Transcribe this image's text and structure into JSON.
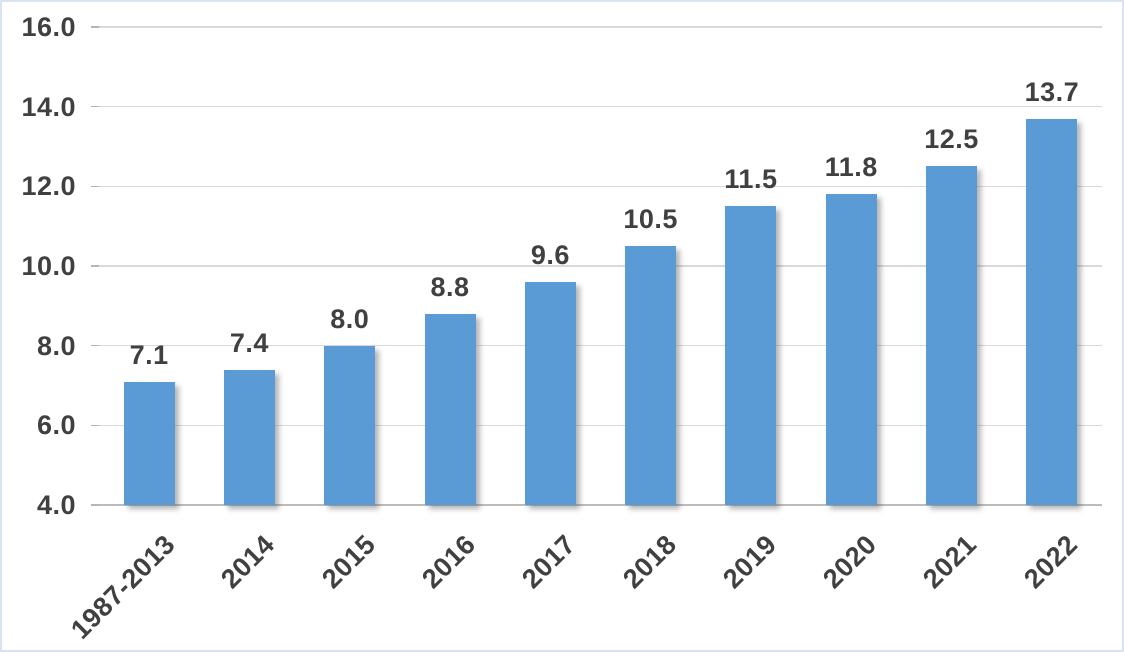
{
  "chart_data": {
    "type": "bar",
    "title": "",
    "xlabel": "",
    "ylabel": "",
    "categories": [
      "1987-2013",
      "2014",
      "2015",
      "2016",
      "2017",
      "2018",
      "2019",
      "2020",
      "2021",
      "2022"
    ],
    "values": [
      7.1,
      7.4,
      8.0,
      8.8,
      9.6,
      10.5,
      11.5,
      11.8,
      12.5,
      13.7
    ],
    "data_labels": [
      "7.1",
      "7.4",
      "8.0",
      "8.8",
      "9.6",
      "10.5",
      "11.5",
      "11.8",
      "12.5",
      "13.7"
    ],
    "ylim": [
      4.0,
      16.0
    ],
    "ytick_interval": 2.0,
    "yticks": [
      "4.0",
      "6.0",
      "8.0",
      "10.0",
      "12.0",
      "14.0",
      "16.0"
    ],
    "grid": true,
    "legend": false,
    "x_label_rotation_deg": -45,
    "colors": {
      "bar": "#5b9bd5",
      "gridline": "#d9d9d9",
      "axis_line": "#bcbcbc",
      "label_text": "#404040",
      "frame_border": "#dae4f1",
      "background": "#ffffff"
    }
  }
}
